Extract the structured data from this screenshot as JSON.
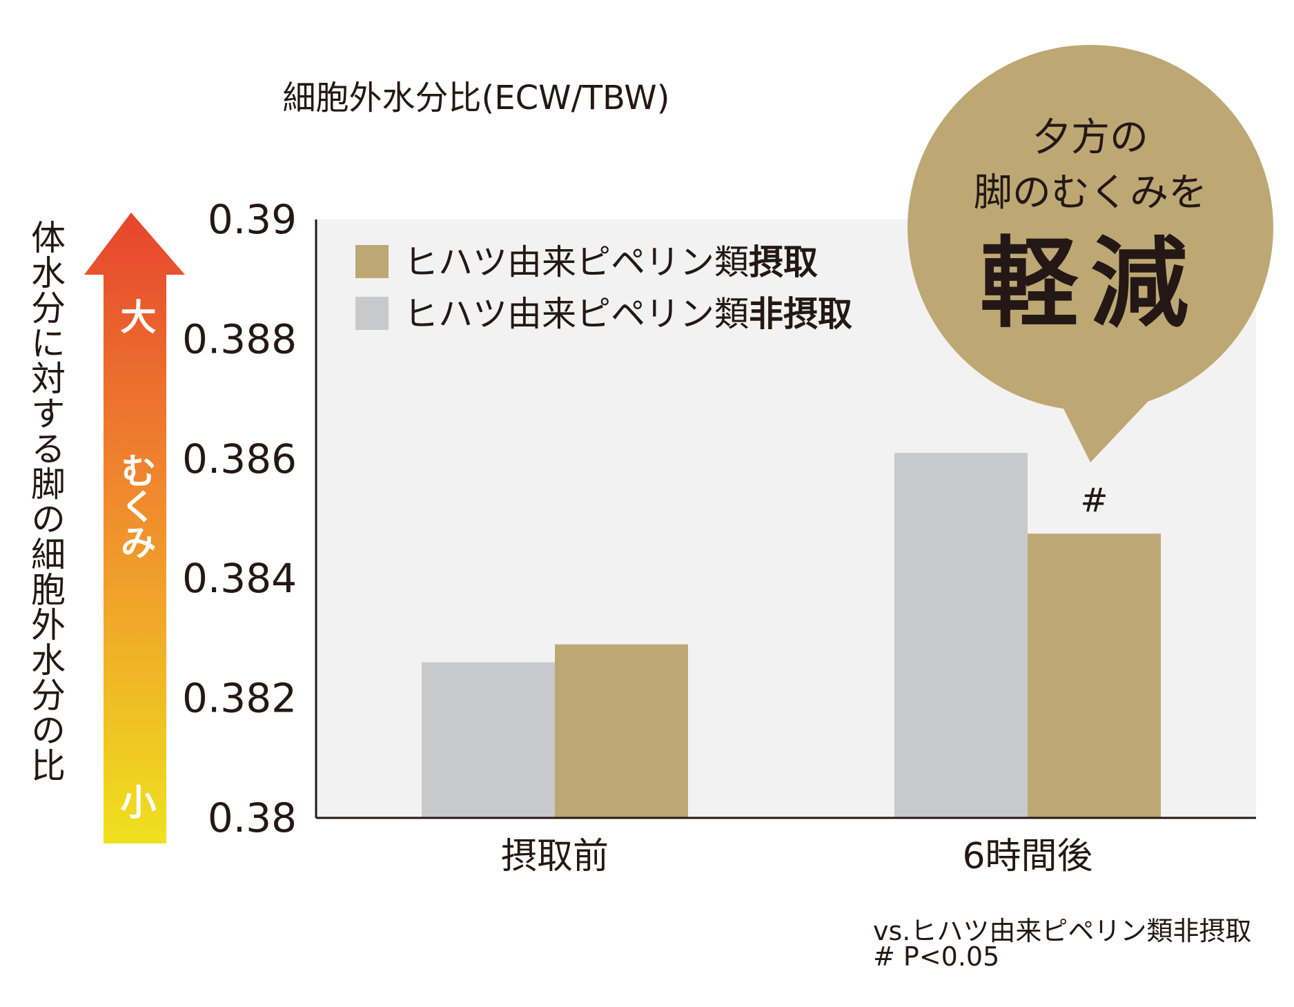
{
  "chart_data": {
    "type": "bar",
    "title": "細胞外水分比(ECW/TBW)",
    "ylabel": "体水分に対する脚の細胞外水分の比",
    "ylim": [
      0.38,
      0.39
    ],
    "yticks": [
      "0.39",
      "0.388",
      "0.386",
      "0.384",
      "0.382",
      "0.38"
    ],
    "categories": [
      "摂取前",
      "6時間後"
    ],
    "series": [
      {
        "name_prefix": "ヒハツ由来ピペリン類",
        "name_emph": "非摂取",
        "color": "#c8c9ca",
        "values": [
          0.3826,
          0.3861
        ]
      },
      {
        "name_prefix": "ヒハツ由来ピペリン類",
        "name_emph": "摂取",
        "color": "#bda874",
        "values": [
          0.3829,
          0.38475
        ]
      }
    ],
    "significance_mark": "#",
    "grid": false
  },
  "legend": [
    {
      "prefix": "ヒハツ由来ピペリン類",
      "emph": "摂取",
      "color": "#bda874"
    },
    {
      "prefix": "ヒハツ由来ピペリン類",
      "emph": "非摂取",
      "color": "#c8c9ca"
    }
  ],
  "arrow": {
    "top": "大",
    "middle": "むくみ",
    "bottom": "小",
    "color_top": "#e6452d",
    "color_bottom": "#efe11e"
  },
  "callout": {
    "line1": "夕方の",
    "line2": "脚のむくみを",
    "line3": "軽減",
    "color": "#bda874"
  },
  "note": {
    "line1": "vs.ヒハツ由来ピペリン類非摂取",
    "line2": "# P<0.05"
  },
  "colors": {
    "plot_bg": "#f2f2f2",
    "axis": "#231815"
  }
}
